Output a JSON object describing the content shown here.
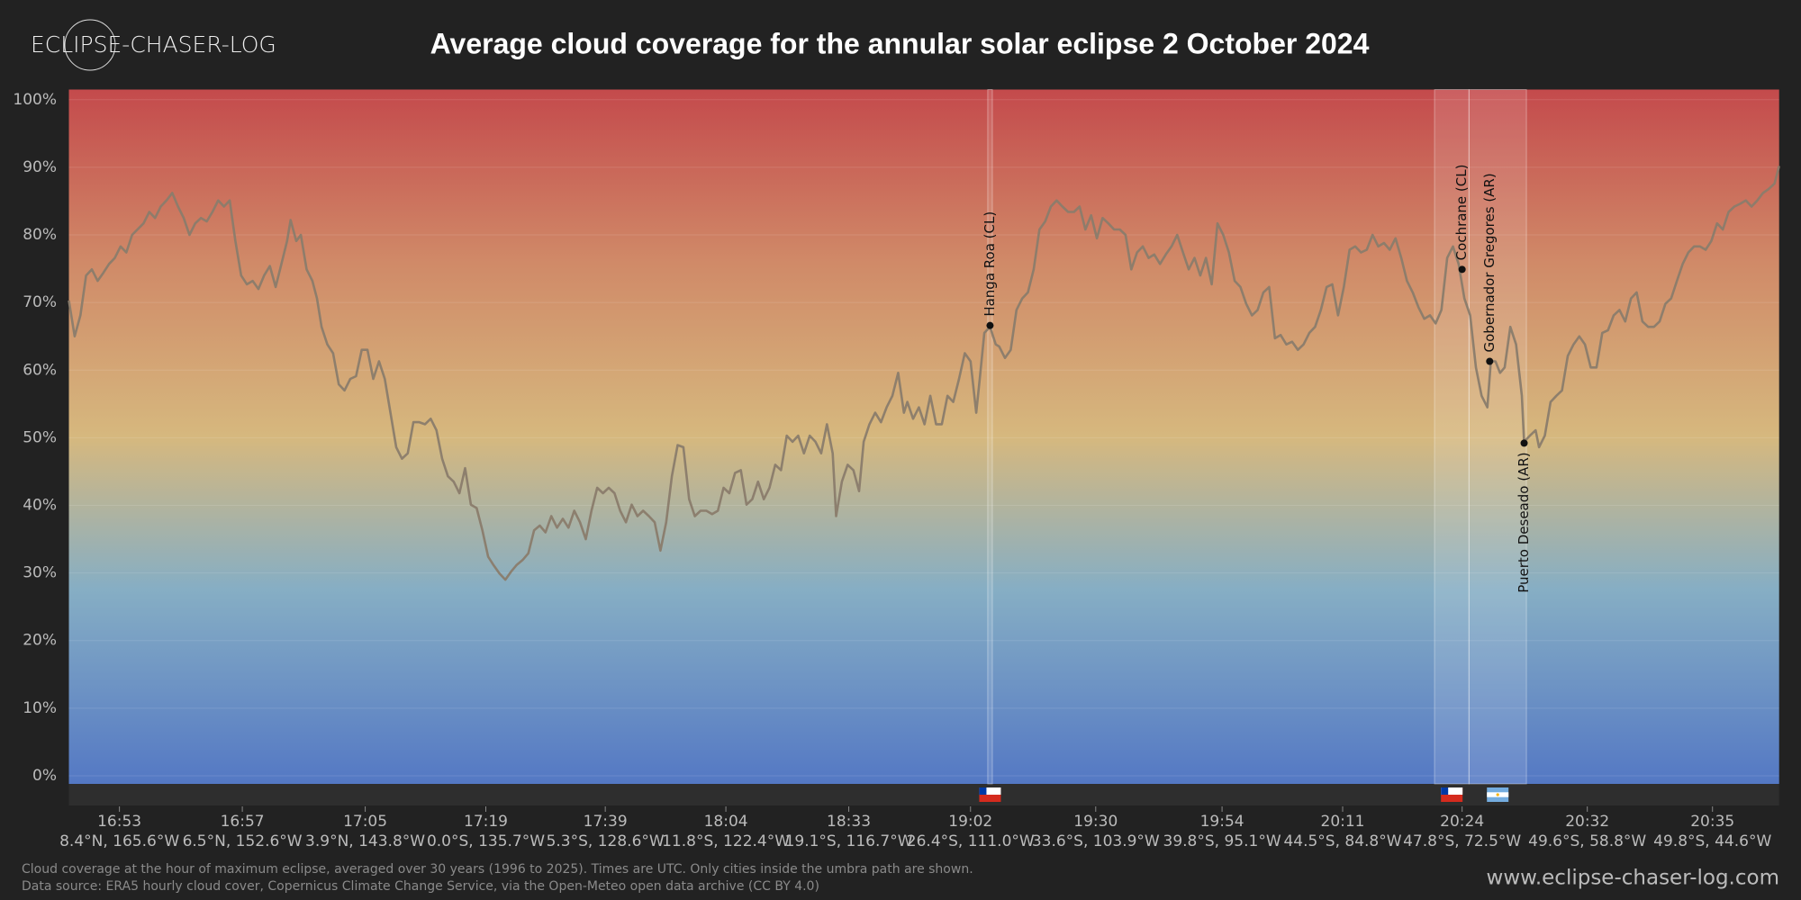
{
  "logo": "ECLIPSE-CHASER-LOG",
  "footer": {
    "notes": [
      "Cloud coverage at the hour of maximum eclipse, averaged over 30 years (1996 to 2025). Times are UTC. Only cities inside the umbra path are shown.",
      "Data source: ERA5 hourly cloud cover, Copernicus Climate Change Service, via the Open-Meteo open data archive (CC BY 4.0)"
    ],
    "url": "www.eclipse-chaser-log.com"
  },
  "chart_data": {
    "type": "line",
    "title": "Average cloud coverage for the annular solar eclipse 2 October 2024",
    "color": "#8a7c6c",
    "xlim": [
      0,
      1489
    ],
    "ylim": [
      -1.2,
      101.5
    ],
    "yticks": [
      {
        "value": 0,
        "label": "0%"
      },
      {
        "value": 10,
        "label": "10%"
      },
      {
        "value": 20,
        "label": "20%"
      },
      {
        "value": 30,
        "label": "30%"
      },
      {
        "value": 40,
        "label": "40%"
      },
      {
        "value": 50,
        "label": "50%"
      },
      {
        "value": 60,
        "label": "60%"
      },
      {
        "value": 70,
        "label": "70%"
      },
      {
        "value": 80,
        "label": "80%"
      },
      {
        "value": 90,
        "label": "90%"
      },
      {
        "value": 100,
        "label": "100%"
      }
    ],
    "xticks": [
      {
        "value": 44,
        "label": "16:53"
      },
      {
        "value": 151,
        "label": "16:57"
      },
      {
        "value": 258,
        "label": "17:05"
      },
      {
        "value": 363,
        "label": "17:19"
      },
      {
        "value": 467,
        "label": "17:39"
      },
      {
        "value": 572,
        "label": "18:04"
      },
      {
        "value": 679,
        "label": "18:33"
      },
      {
        "value": 785,
        "label": "19:02"
      },
      {
        "value": 894,
        "label": "19:30"
      },
      {
        "value": 1004,
        "label": "19:54"
      },
      {
        "value": 1109,
        "label": "20:11"
      },
      {
        "value": 1213,
        "label": "20:24"
      },
      {
        "value": 1322,
        "label": "20:32"
      },
      {
        "value": 1431,
        "label": "20:35"
      }
    ],
    "xtick_sublabels": [
      "8.4°N, 165.6°W",
      "6.5°N, 152.6°W",
      "3.9°N, 143.8°W",
      "0.0°S, 135.7°W",
      "5.3°S, 128.6°W",
      "11.8°S, 122.4°W",
      "19.1°S, 116.7°W",
      "26.4°S, 111.0°W",
      "33.6°S, 103.9°W",
      "39.8°S, 95.1°W",
      "44.5°S, 84.8°W",
      "47.8°S, 72.5°W",
      "49.6°S, 58.8°W",
      "49.8°S, 44.6°W"
    ],
    "grid": true,
    "regions": [
      {
        "x": [
          800,
          804
        ],
        "flag": "CL"
      },
      {
        "x": [
          1189,
          1219
        ],
        "flag": "CL"
      },
      {
        "x": [
          1219,
          1269
        ],
        "flag": "AR"
      }
    ],
    "annotations": [
      {
        "label": "Hanga Roa (CL)",
        "x": 802,
        "value": 66.6,
        "side": "above"
      },
      {
        "label": "Cochrane (CL)",
        "x": 1213,
        "value": 74.9,
        "side": "above"
      },
      {
        "label": "Gobernador Gregores (AR)",
        "x": 1237,
        "value": 61.3,
        "side": "above"
      },
      {
        "label": "Puerto Deseado (AR)",
        "x": 1267,
        "value": 49.2,
        "side": "below"
      }
    ],
    "x": [
      0,
      5,
      10,
      15,
      20,
      25,
      30,
      35,
      40,
      45,
      50,
      55,
      65,
      70,
      75,
      80,
      85,
      90,
      95,
      100,
      105,
      110,
      115,
      120,
      125,
      130,
      135,
      140,
      145,
      150,
      155,
      160,
      165,
      170,
      175,
      180,
      185,
      190,
      193,
      198,
      202,
      207,
      212,
      216,
      220,
      225,
      230,
      235,
      240,
      245,
      250,
      255,
      260,
      265,
      270,
      275,
      280,
      285,
      290,
      295,
      300,
      305,
      310,
      315,
      320,
      325,
      330,
      335,
      340,
      345,
      350,
      355,
      360,
      365,
      370,
      375,
      380,
      385,
      390,
      395,
      400,
      405,
      410,
      415,
      420,
      425,
      430,
      435,
      440,
      445,
      450,
      455,
      460,
      465,
      470,
      475,
      480,
      485,
      490,
      495,
      500,
      505,
      510,
      515,
      520,
      525,
      530,
      535,
      540,
      545,
      550,
      555,
      560,
      565,
      570,
      575,
      580,
      585,
      590,
      595,
      600,
      605,
      610,
      615,
      620,
      625,
      630,
      635,
      640,
      645,
      650,
      655,
      660,
      665,
      668,
      673,
      678,
      683,
      688,
      692,
      697,
      702,
      707,
      712,
      717,
      722,
      727,
      730,
      735,
      740,
      745,
      750,
      755,
      760,
      765,
      770,
      775,
      780,
      785,
      790,
      793,
      797,
      802,
      807,
      810,
      815,
      820,
      825,
      830,
      835,
      840,
      845,
      850,
      855,
      860,
      865,
      870,
      875,
      880,
      885,
      890,
      895,
      900,
      905,
      910,
      915,
      920,
      925,
      930,
      935,
      940,
      945,
      950,
      955,
      960,
      965,
      970,
      975,
      980,
      985,
      990,
      995,
      1000,
      1005,
      1010,
      1015,
      1020,
      1025,
      1030,
      1035,
      1040,
      1045,
      1050,
      1055,
      1060,
      1065,
      1070,
      1075,
      1080,
      1085,
      1090,
      1095,
      1100,
      1105,
      1110,
      1115,
      1120,
      1125,
      1130,
      1135,
      1140,
      1145,
      1150,
      1155,
      1160,
      1165,
      1170,
      1175,
      1180,
      1185,
      1190,
      1195,
      1200,
      1205,
      1210,
      1215,
      1220,
      1225,
      1230,
      1235,
      1238,
      1242,
      1246,
      1250,
      1255,
      1260,
      1265,
      1267,
      1272,
      1277,
      1280,
      1285,
      1290,
      1295,
      1300,
      1305,
      1310,
      1315,
      1320,
      1325,
      1330,
      1335,
      1340,
      1345,
      1350,
      1355,
      1360,
      1365,
      1370,
      1375,
      1380,
      1385,
      1390,
      1395,
      1400,
      1405,
      1410,
      1415,
      1420,
      1425,
      1430,
      1435,
      1440,
      1445,
      1450,
      1455,
      1460,
      1465,
      1470,
      1475,
      1480,
      1485,
      1489
    ],
    "values": [
      70.3,
      65.0,
      68.1,
      74.0,
      74.9,
      73.2,
      74.4,
      75.7,
      76.6,
      78.3,
      77.4,
      80.0,
      81.7,
      83.4,
      82.5,
      84.2,
      85.1,
      86.2,
      84.2,
      82.5,
      80.0,
      81.7,
      82.5,
      82.0,
      83.4,
      85.1,
      84.2,
      85.1,
      79.1,
      74.0,
      72.7,
      73.2,
      72.0,
      74.0,
      75.4,
      72.3,
      75.7,
      79.1,
      82.2,
      79.1,
      80.0,
      74.9,
      73.2,
      70.6,
      66.4,
      63.8,
      62.5,
      57.9,
      57.0,
      58.7,
      59.1,
      63.0,
      63.0,
      58.7,
      61.3,
      58.7,
      53.7,
      48.6,
      46.9,
      47.7,
      52.3,
      52.3,
      52.0,
      52.8,
      51.1,
      46.9,
      44.3,
      43.5,
      41.8,
      45.5,
      40.1,
      39.6,
      36.3,
      32.4,
      31.1,
      29.9,
      29.0,
      30.2,
      31.2,
      31.9,
      32.9,
      36.3,
      37.0,
      36.0,
      38.4,
      36.7,
      38.0,
      36.7,
      39.2,
      37.5,
      35.0,
      39.2,
      42.6,
      41.8,
      42.6,
      41.8,
      39.2,
      37.5,
      40.1,
      38.4,
      39.2,
      38.4,
      37.5,
      33.3,
      37.5,
      44.3,
      48.9,
      48.6,
      40.9,
      38.4,
      39.2,
      39.2,
      38.7,
      39.2,
      42.6,
      41.8,
      44.8,
      45.2,
      40.1,
      40.9,
      43.5,
      40.9,
      42.6,
      46.0,
      45.2,
      50.3,
      49.4,
      50.3,
      47.7,
      50.3,
      49.4,
      47.7,
      52.0,
      47.7,
      38.4,
      43.5,
      46.0,
      45.2,
      42.1,
      49.4,
      52.0,
      53.7,
      52.3,
      54.5,
      56.2,
      59.6,
      53.7,
      55.3,
      52.8,
      54.5,
      52.0,
      56.2,
      52.0,
      52.0,
      56.2,
      55.3,
      58.7,
      62.5,
      61.3,
      53.7,
      58.7,
      65.5,
      66.4,
      63.8,
      63.5,
      61.8,
      63.0,
      68.9,
      70.6,
      71.5,
      74.9,
      80.8,
      82.0,
      84.2,
      85.1,
      84.2,
      83.4,
      83.4,
      84.2,
      80.8,
      82.9,
      79.5,
      82.5,
      81.7,
      80.8,
      80.8,
      80.0,
      74.9,
      77.4,
      78.3,
      76.6,
      77.1,
      75.7,
      77.1,
      78.3,
      80.0,
      77.4,
      74.9,
      76.6,
      74.0,
      76.6,
      72.7,
      81.7,
      80.0,
      77.4,
      73.2,
      72.3,
      69.8,
      68.1,
      68.9,
      71.5,
      72.3,
      64.7,
      65.2,
      63.8,
      64.2,
      63.0,
      63.8,
      65.5,
      66.4,
      68.9,
      72.3,
      72.7,
      68.1,
      72.3,
      77.8,
      78.3,
      77.4,
      77.8,
      80.0,
      78.3,
      78.8,
      77.8,
      79.5,
      76.6,
      73.2,
      71.5,
      69.3,
      67.6,
      68.1,
      66.9,
      68.9,
      76.6,
      78.3,
      75.7,
      70.6,
      68.1,
      60.4,
      56.2,
      54.5,
      61.3,
      61.3,
      59.6,
      60.4,
      66.4,
      63.8,
      56.2,
      49.4,
      50.3,
      51.1,
      48.6,
      50.3,
      55.3,
      56.2,
      57.0,
      62.1,
      63.8,
      65.0,
      63.8,
      60.4,
      60.4,
      65.5,
      65.9,
      68.1,
      68.9,
      67.2,
      70.6,
      71.5,
      67.2,
      66.4,
      66.4,
      67.2,
      69.8,
      70.6,
      73.2,
      75.7,
      77.4,
      78.3,
      78.3,
      77.8,
      79.1,
      81.7,
      80.8,
      83.4,
      84.2,
      84.6,
      85.1,
      84.2,
      85.1,
      86.2,
      86.8,
      87.6,
      90.2
    ]
  }
}
